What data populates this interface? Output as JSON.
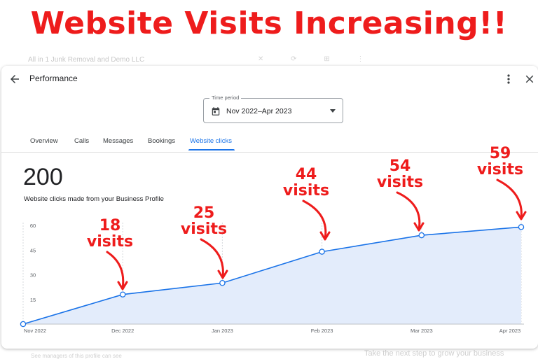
{
  "headline": "Website Visits Increasing!!",
  "background": {
    "business_name": "All in 1 Junk Removal and Demo LLC",
    "next_step": "Take the next step to grow your business",
    "footer": "See managers of this profile can see"
  },
  "header": {
    "title": "Performance",
    "back_icon": "arrow-left-icon",
    "menu_icon": "more-vert-icon",
    "close_icon": "close-icon"
  },
  "time_period": {
    "label": "Time period",
    "value": "Nov 2022–Apr 2023",
    "icon": "calendar-icon"
  },
  "tabs": [
    {
      "label": "Overview",
      "active": false
    },
    {
      "label": "Calls",
      "active": false
    },
    {
      "label": "Messages",
      "active": false
    },
    {
      "label": "Bookings",
      "active": false
    },
    {
      "label": "Website clicks",
      "active": true
    }
  ],
  "summary": {
    "total": "200",
    "caption": "Website clicks made from your Business Profile"
  },
  "colors": {
    "accent": "#1a73e8",
    "annotation": "#ee1c1c",
    "area_fill": "#e3ecfb"
  },
  "chart_data": {
    "type": "area",
    "title": "",
    "xlabel": "",
    "ylabel": "",
    "categories": [
      "Nov 2022",
      "Dec 2022",
      "Jan 2023",
      "Feb 2023",
      "Mar 2023",
      "Apr 2023"
    ],
    "values": [
      0,
      18,
      25,
      44,
      54,
      59
    ],
    "y_ticks": [
      "60",
      "45",
      "30",
      "15"
    ],
    "ylim": [
      0,
      60
    ],
    "grid": "vertical dashed",
    "annotations": [
      {
        "category": "Dec 2022",
        "number": "18",
        "word": "visits"
      },
      {
        "category": "Jan 2023",
        "number": "25",
        "word": "visits"
      },
      {
        "category": "Feb 2023",
        "number": "44",
        "word": "visits"
      },
      {
        "category": "Mar 2023",
        "number": "54",
        "word": "visits"
      },
      {
        "category": "Apr 2023",
        "number": "59",
        "word": "visits"
      }
    ]
  }
}
